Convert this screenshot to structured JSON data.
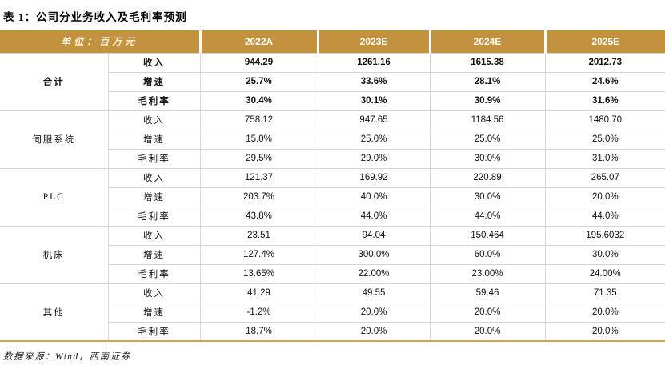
{
  "title": "表 1：公司分业务收入及毛利率预测",
  "header": {
    "unit": "单位：百万元",
    "columns": [
      "2022A",
      "2023E",
      "2024E",
      "2025E"
    ]
  },
  "table": {
    "groups": [
      {
        "name": "合计",
        "bold": true,
        "rows": [
          {
            "metric": "收入",
            "values": [
              "944.29",
              "1261.16",
              "1615.38",
              "2012.73"
            ]
          },
          {
            "metric": "增速",
            "values": [
              "25.7%",
              "33.6%",
              "28.1%",
              "24.6%"
            ]
          },
          {
            "metric": "毛利率",
            "values": [
              "30.4%",
              "30.1%",
              "30.9%",
              "31.6%"
            ]
          }
        ]
      },
      {
        "name": "伺服系统",
        "bold": false,
        "rows": [
          {
            "metric": "收入",
            "values": [
              "758.12",
              "947.65",
              "1184.56",
              "1480.70"
            ]
          },
          {
            "metric": "增速",
            "values": [
              "15.0%",
              "25.0%",
              "25.0%",
              "25.0%"
            ]
          },
          {
            "metric": "毛利率",
            "values": [
              "29.5%",
              "29.0%",
              "30.0%",
              "31.0%"
            ]
          }
        ]
      },
      {
        "name": "PLC",
        "bold": false,
        "rows": [
          {
            "metric": "收入",
            "values": [
              "121.37",
              "169.92",
              "220.89",
              "265.07"
            ]
          },
          {
            "metric": "增速",
            "values": [
              "203.7%",
              "40.0%",
              "30.0%",
              "20.0%"
            ]
          },
          {
            "metric": "毛利率",
            "values": [
              "43.8%",
              "44.0%",
              "44.0%",
              "44.0%"
            ]
          }
        ]
      },
      {
        "name": "机床",
        "bold": false,
        "rows": [
          {
            "metric": "收入",
            "values": [
              "23.51",
              "94.04",
              "150.464",
              "195.6032"
            ]
          },
          {
            "metric": "增速",
            "values": [
              "127.4%",
              "300.0%",
              "60.0%",
              "30.0%"
            ]
          },
          {
            "metric": "毛利率",
            "values": [
              "13.65%",
              "22.00%",
              "23.00%",
              "24.00%"
            ]
          }
        ]
      },
      {
        "name": "其他",
        "bold": false,
        "rows": [
          {
            "metric": "收入",
            "values": [
              "41.29",
              "49.55",
              "59.46",
              "71.35"
            ]
          },
          {
            "metric": "增速",
            "values": [
              "-1.2%",
              "20.0%",
              "20.0%",
              "20.0%"
            ]
          },
          {
            "metric": "毛利率",
            "values": [
              "18.7%",
              "20.0%",
              "20.0%",
              "20.0%"
            ]
          }
        ]
      }
    ]
  },
  "footer": "数据来源：Wind，西南证券",
  "colors": {
    "header_bg": "#C3923E",
    "header_text": "#FFFFFF",
    "unit_text": "#FDF3DC",
    "bottom_border": "#DDA04C",
    "cell_border": "#D8D8D8"
  }
}
